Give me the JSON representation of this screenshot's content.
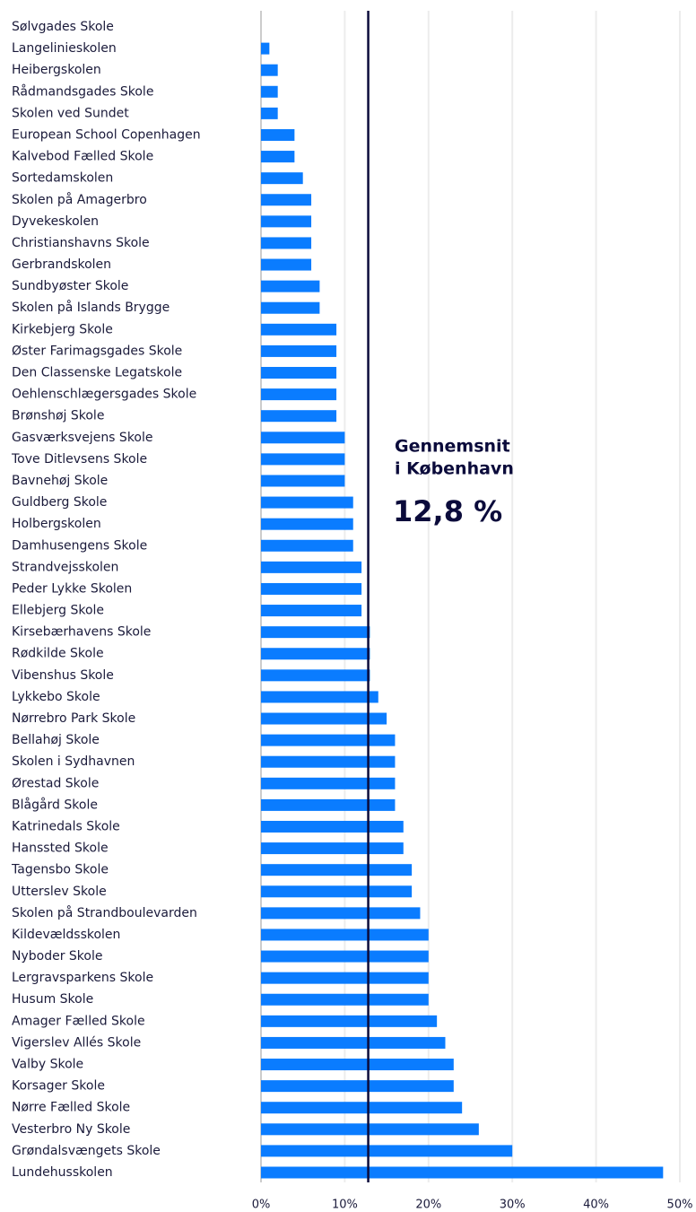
{
  "chart_data": {
    "type": "bar",
    "orientation": "horizontal",
    "categories": [
      "Sølvgades Skole",
      "Langelinieskolen",
      "Heibergskolen",
      "Rådmandsgades Skole",
      "Skolen ved Sundet",
      "European School Copenhagen",
      "Kalvebod Fælled Skole",
      "Sortedamskolen",
      "Skolen på Amagerbro",
      "Dyvekeskolen",
      "Christianshavns Skole",
      "Gerbrandskolen",
      "Sundbyøster Skole",
      "Skolen på Islands Brygge",
      "Kirkebjerg Skole",
      "Øster Farimagsgades Skole",
      "Den Classenske Legatskole",
      "Oehlenschlægersgades Skole",
      "Brønshøj Skole",
      "Gasværksvejens Skole",
      "Tove Ditlevsens Skole",
      "Bavnehøj Skole",
      "Guldberg Skole",
      "Holbergskolen",
      "Damhusengens Skole",
      "Strandvejsskolen",
      "Peder Lykke Skolen",
      "Ellebjerg Skole",
      "Kirsebærhavens Skole",
      "Rødkilde Skole",
      "Vibenshus Skole",
      "Lykkebo Skole",
      "Nørrebro Park Skole",
      "Bellahøj Skole",
      "Skolen i Sydhavnen",
      "Ørestad Skole",
      "Blågård Skole",
      "Katrinedals Skole",
      "Hanssted Skole",
      "Tagensbo Skole",
      "Utterslev Skole",
      "Skolen på Strandboulevarden",
      "Kildevældsskolen",
      "Nyboder Skole",
      "Lergravsparkens Skole",
      "Husum Skole",
      "Amager Fælled Skole",
      "Vigerslev Allés Skole",
      "Valby Skole",
      "Korsager Skole",
      "Nørre Fælled Skole",
      "Vesterbro Ny Skole",
      "Grøndalsvængets Skole",
      "Lundehusskolen"
    ],
    "values": [
      0,
      1,
      2,
      2,
      2,
      4,
      4,
      5,
      6,
      6,
      6,
      6,
      7,
      7,
      9,
      9,
      9,
      9,
      9,
      10,
      10,
      10,
      11,
      11,
      11,
      12,
      12,
      12,
      13,
      13,
      13,
      14,
      15,
      16,
      16,
      16,
      16,
      17,
      17,
      18,
      18,
      19,
      20,
      20,
      20,
      20,
      21,
      22,
      23,
      23,
      24,
      26,
      30,
      48
    ],
    "color": "#0a7cff",
    "xlim": [
      0,
      50
    ],
    "xticks": [
      {
        "value": 0,
        "label": "0%"
      },
      {
        "value": 10,
        "label": "10%"
      },
      {
        "value": 20,
        "label": "20%"
      },
      {
        "value": 30,
        "label": "30%"
      },
      {
        "value": 40,
        "label": "40%"
      },
      {
        "value": 50,
        "label": "50%"
      }
    ],
    "grid": true,
    "average": {
      "lines": [
        "Gennemsnit",
        "i København"
      ],
      "value": 12.8,
      "label": "12,8 %"
    }
  }
}
